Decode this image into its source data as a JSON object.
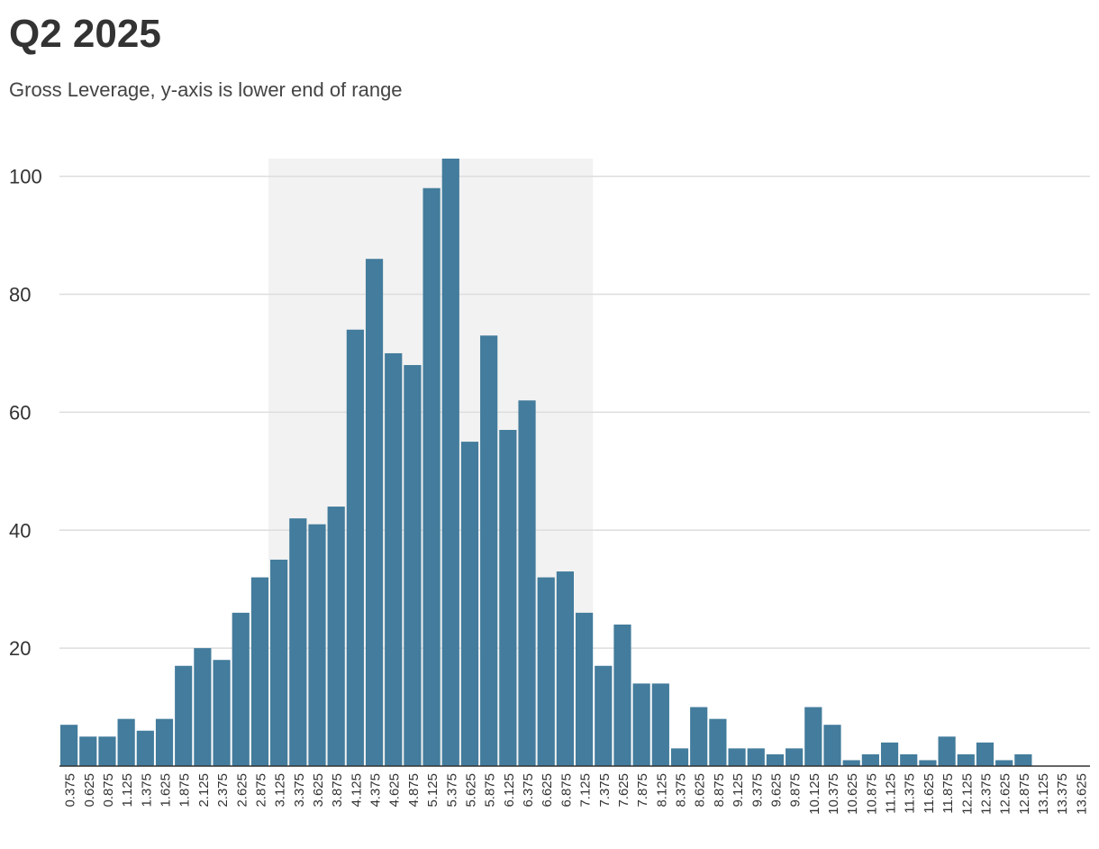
{
  "title": "Q2 2025",
  "subtitle": "Gross Leverage, y-axis is lower end of range",
  "colors": {
    "bar": "#437c9c",
    "highlight": "#f2f2f2",
    "grid": "#dddddd",
    "axis": "#333333"
  },
  "chart_data": {
    "type": "bar",
    "title": "Q2 2025",
    "subtitle": "Gross Leverage, y-axis is lower end of range",
    "xlabel": "",
    "ylabel": "",
    "ylim": [
      0,
      103
    ],
    "yticks": [
      20,
      40,
      60,
      80,
      100
    ],
    "grid": true,
    "highlight_range": [
      "3.125",
      "7.125"
    ],
    "categories": [
      "0.375",
      "0.625",
      "0.875",
      "1.125",
      "1.375",
      "1.625",
      "1.875",
      "2.125",
      "2.375",
      "2.625",
      "2.875",
      "3.125",
      "3.375",
      "3.625",
      "3.875",
      "4.125",
      "4.375",
      "4.625",
      "4.875",
      "5.125",
      "5.375",
      "5.625",
      "5.875",
      "6.125",
      "6.375",
      "6.625",
      "6.875",
      "7.125",
      "7.375",
      "7.625",
      "7.875",
      "8.125",
      "8.375",
      "8.625",
      "8.875",
      "9.125",
      "9.375",
      "9.625",
      "9.875",
      "10.125",
      "10.375",
      "10.625",
      "10.875",
      "11.125",
      "11.375",
      "11.625",
      "11.875",
      "12.125",
      "12.375",
      "12.625",
      "12.875",
      "13.125",
      "13.375",
      "13.625"
    ],
    "values": [
      7,
      5,
      5,
      8,
      6,
      8,
      17,
      20,
      18,
      26,
      32,
      35,
      42,
      41,
      44,
      74,
      86,
      70,
      68,
      98,
      103,
      55,
      73,
      57,
      62,
      32,
      33,
      26,
      17,
      24,
      14,
      14,
      3,
      10,
      8,
      3,
      3,
      2,
      3,
      10,
      7,
      1,
      2,
      4,
      2,
      1,
      5,
      2,
      4,
      1,
      2,
      0,
      0,
      0
    ]
  }
}
